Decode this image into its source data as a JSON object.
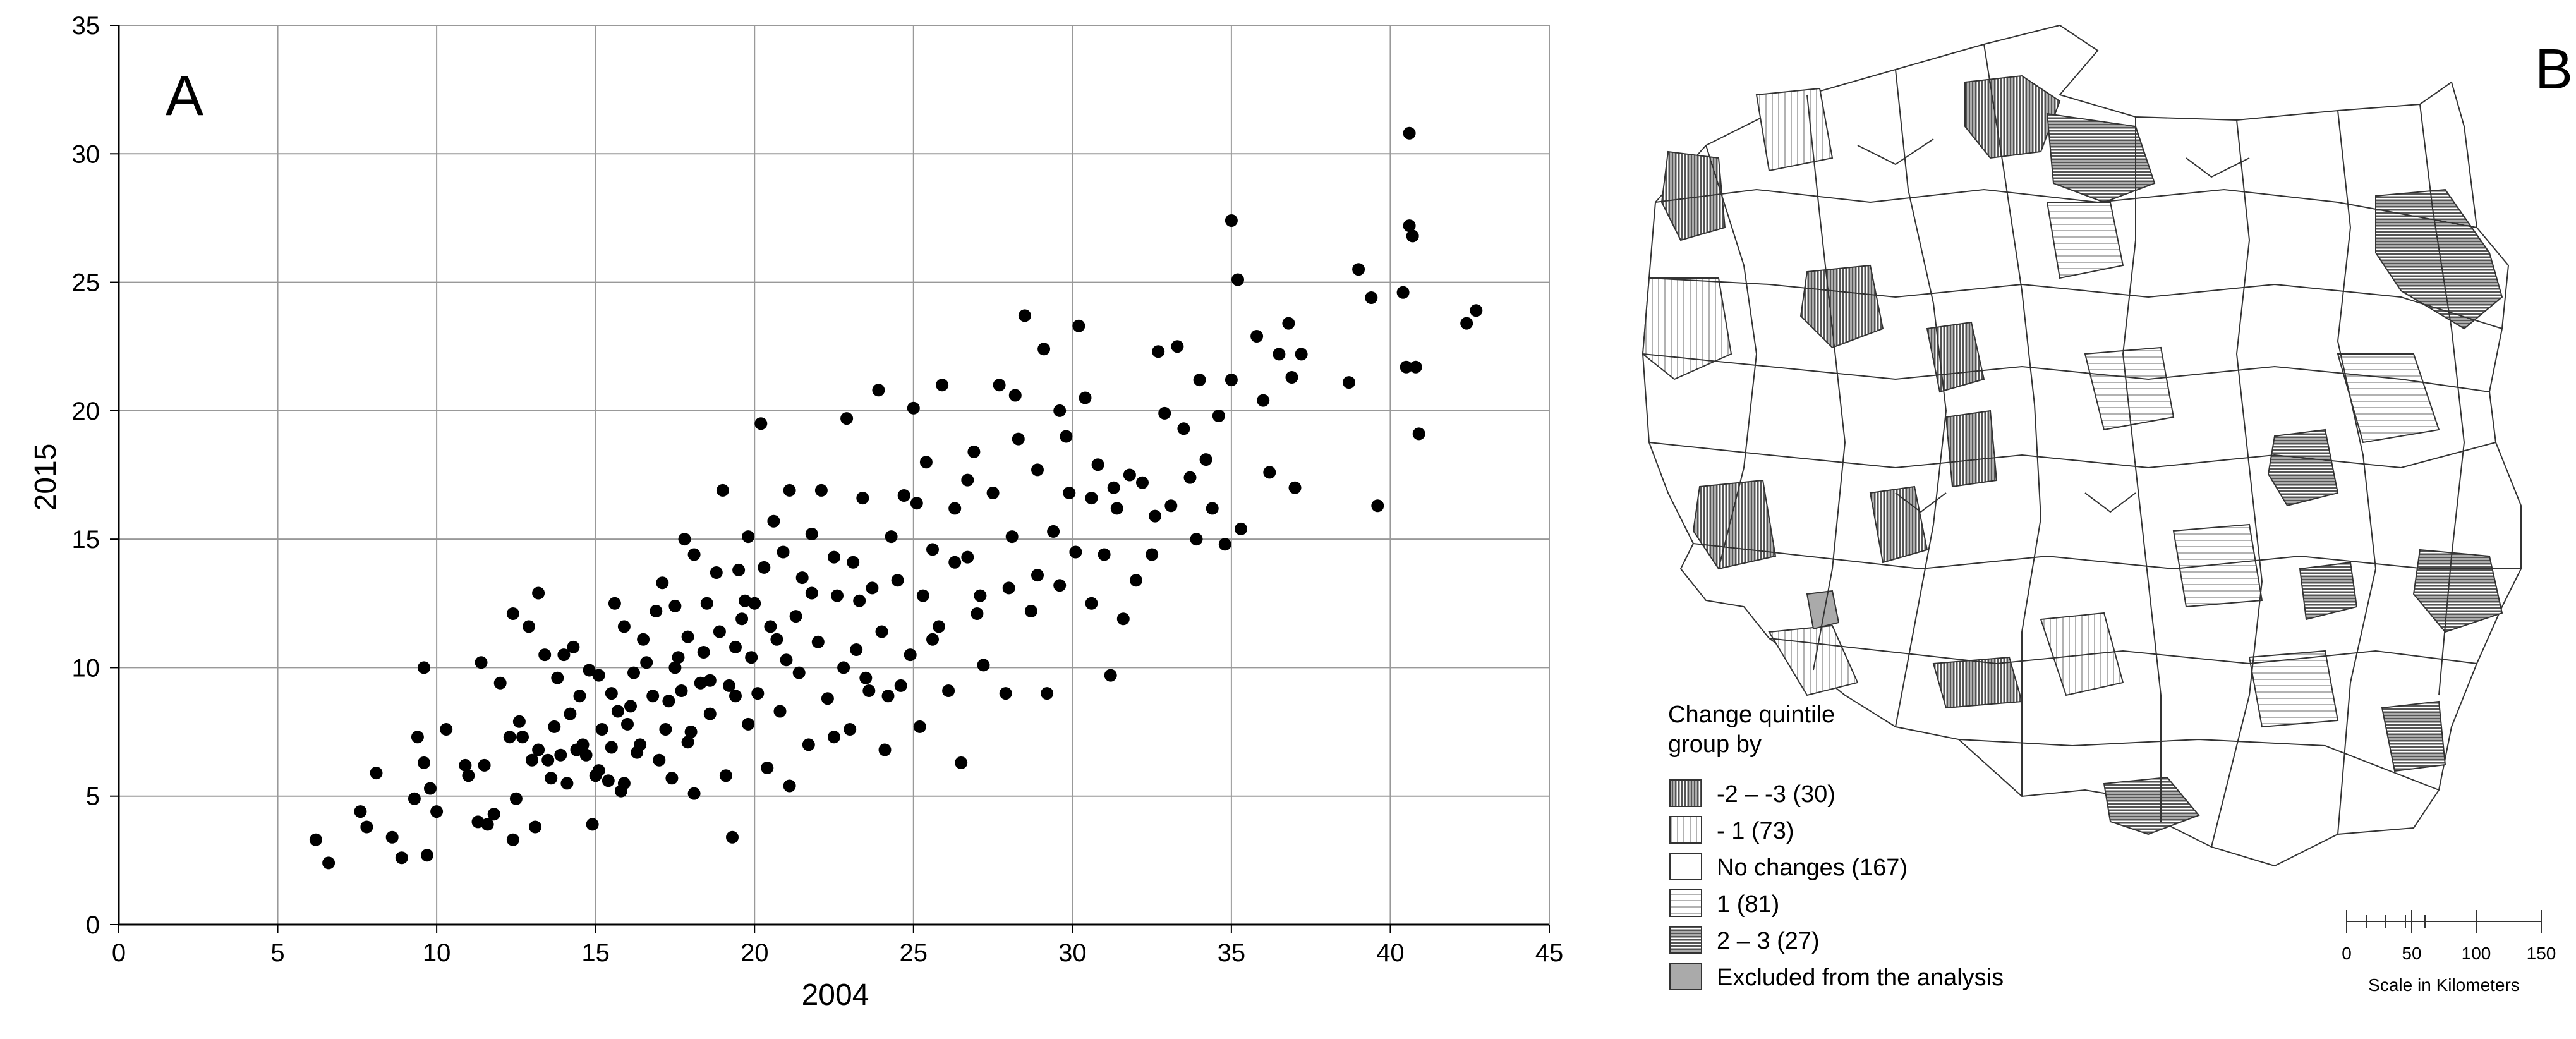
{
  "panel_a_label": "A",
  "panel_b_label": "B",
  "chart_data": {
    "type": "scatter",
    "xlabel": "2004",
    "ylabel": "2015",
    "xlim": [
      0,
      45
    ],
    "ylim": [
      0,
      35
    ],
    "x_ticks": [
      0,
      5,
      10,
      15,
      20,
      25,
      30,
      35,
      40,
      45
    ],
    "y_ticks": [
      0,
      5,
      10,
      15,
      20,
      25,
      30,
      35
    ],
    "grid": true,
    "marker_color": "#000000",
    "points": [
      [
        6.2,
        3.3
      ],
      [
        6.6,
        2.4
      ],
      [
        7.6,
        4.4
      ],
      [
        7.8,
        3.8
      ],
      [
        8.1,
        5.9
      ],
      [
        8.6,
        3.4
      ],
      [
        8.9,
        2.6
      ],
      [
        9.3,
        4.9
      ],
      [
        9.4,
        7.3
      ],
      [
        9.6,
        10.0
      ],
      [
        9.6,
        6.3
      ],
      [
        9.7,
        2.7
      ],
      [
        9.8,
        5.3
      ],
      [
        10.0,
        4.4
      ],
      [
        10.3,
        7.6
      ],
      [
        10.9,
        6.2
      ],
      [
        11.0,
        5.8
      ],
      [
        11.3,
        4.0
      ],
      [
        11.4,
        10.2
      ],
      [
        11.5,
        6.2
      ],
      [
        11.6,
        3.9
      ],
      [
        11.8,
        4.3
      ],
      [
        12.0,
        9.4
      ],
      [
        12.3,
        7.3
      ],
      [
        12.4,
        12.1
      ],
      [
        12.4,
        3.3
      ],
      [
        12.5,
        4.9
      ],
      [
        12.6,
        7.9
      ],
      [
        12.7,
        7.3
      ],
      [
        13.0,
        6.4
      ],
      [
        13.1,
        3.8
      ],
      [
        13.2,
        12.9
      ],
      [
        13.2,
        6.8
      ],
      [
        13.4,
        10.5
      ],
      [
        13.5,
        6.4
      ],
      [
        13.6,
        5.7
      ],
      [
        13.7,
        7.7
      ],
      [
        13.8,
        9.6
      ],
      [
        13.9,
        6.6
      ],
      [
        14.0,
        10.5
      ],
      [
        14.1,
        5.5
      ],
      [
        14.2,
        8.2
      ],
      [
        14.3,
        10.8
      ],
      [
        14.4,
        6.8
      ],
      [
        14.6,
        7.0
      ],
      [
        14.7,
        6.6
      ],
      [
        14.8,
        9.9
      ],
      [
        14.9,
        3.9
      ],
      [
        15.0,
        5.8
      ],
      [
        15.1,
        9.7
      ],
      [
        15.2,
        7.6
      ],
      [
        15.4,
        5.6
      ],
      [
        15.5,
        6.9
      ],
      [
        15.5,
        9.0
      ],
      [
        15.6,
        12.5
      ],
      [
        15.7,
        8.3
      ],
      [
        15.8,
        5.2
      ],
      [
        15.9,
        11.6
      ],
      [
        15.9,
        5.5
      ],
      [
        16.1,
        8.5
      ],
      [
        16.2,
        9.8
      ],
      [
        16.4,
        7.0
      ],
      [
        16.5,
        11.1
      ],
      [
        16.6,
        10.2
      ],
      [
        16.8,
        8.9
      ],
      [
        16.9,
        12.2
      ],
      [
        17.0,
        6.4
      ],
      [
        17.1,
        13.3
      ],
      [
        17.2,
        7.6
      ],
      [
        17.3,
        8.7
      ],
      [
        17.4,
        5.7
      ],
      [
        17.5,
        12.4
      ],
      [
        17.6,
        10.4
      ],
      [
        17.7,
        9.1
      ],
      [
        17.8,
        15.0
      ],
      [
        17.9,
        11.2
      ],
      [
        18.0,
        7.5
      ],
      [
        18.1,
        14.4
      ],
      [
        18.1,
        5.1
      ],
      [
        18.3,
        9.4
      ],
      [
        18.4,
        10.6
      ],
      [
        18.5,
        12.5
      ],
      [
        18.6,
        9.5
      ],
      [
        18.8,
        13.7
      ],
      [
        18.9,
        11.4
      ],
      [
        19.0,
        16.9
      ],
      [
        19.1,
        5.8
      ],
      [
        19.2,
        9.3
      ],
      [
        19.3,
        3.4
      ],
      [
        19.4,
        8.9
      ],
      [
        19.5,
        13.8
      ],
      [
        19.6,
        11.9
      ],
      [
        19.7,
        12.6
      ],
      [
        19.8,
        15.1
      ],
      [
        19.9,
        10.4
      ],
      [
        20.0,
        12.5
      ],
      [
        20.1,
        9.0
      ],
      [
        20.2,
        19.5
      ],
      [
        20.3,
        13.9
      ],
      [
        20.4,
        6.1
      ],
      [
        20.5,
        11.6
      ],
      [
        20.6,
        15.7
      ],
      [
        20.8,
        8.3
      ],
      [
        20.9,
        14.5
      ],
      [
        21.0,
        10.3
      ],
      [
        21.1,
        16.9
      ],
      [
        21.3,
        12.0
      ],
      [
        21.4,
        9.8
      ],
      [
        21.5,
        13.5
      ],
      [
        21.7,
        7.0
      ],
      [
        21.8,
        15.2
      ],
      [
        22.0,
        11.0
      ],
      [
        22.1,
        16.9
      ],
      [
        22.3,
        8.8
      ],
      [
        22.5,
        14.3
      ],
      [
        22.6,
        12.8
      ],
      [
        22.8,
        10.0
      ],
      [
        22.9,
        19.7
      ],
      [
        23.0,
        7.6
      ],
      [
        23.1,
        14.1
      ],
      [
        23.3,
        12.6
      ],
      [
        23.4,
        16.6
      ],
      [
        23.5,
        9.6
      ],
      [
        23.7,
        13.1
      ],
      [
        23.9,
        20.8
      ],
      [
        24.0,
        11.4
      ],
      [
        24.2,
        8.9
      ],
      [
        24.3,
        15.1
      ],
      [
        24.5,
        13.4
      ],
      [
        24.7,
        16.7
      ],
      [
        24.9,
        10.5
      ],
      [
        25.0,
        20.1
      ],
      [
        25.2,
        7.7
      ],
      [
        25.3,
        12.8
      ],
      [
        25.4,
        18.0
      ],
      [
        25.6,
        14.6
      ],
      [
        25.8,
        11.6
      ],
      [
        25.9,
        21.0
      ],
      [
        26.1,
        9.1
      ],
      [
        26.3,
        16.2
      ],
      [
        26.5,
        6.3
      ],
      [
        26.7,
        14.3
      ],
      [
        26.9,
        18.4
      ],
      [
        27.1,
        12.8
      ],
      [
        27.2,
        10.1
      ],
      [
        27.5,
        16.8
      ],
      [
        27.7,
        21.0
      ],
      [
        27.9,
        9.0
      ],
      [
        28.1,
        15.1
      ],
      [
        28.3,
        18.9
      ],
      [
        28.5,
        23.7
      ],
      [
        28.7,
        12.2
      ],
      [
        28.9,
        17.7
      ],
      [
        29.1,
        22.4
      ],
      [
        29.2,
        9.0
      ],
      [
        29.4,
        15.3
      ],
      [
        29.6,
        13.2
      ],
      [
        29.8,
        19.0
      ],
      [
        29.9,
        16.8
      ],
      [
        30.1,
        14.5
      ],
      [
        30.2,
        23.3
      ],
      [
        30.4,
        20.5
      ],
      [
        30.6,
        12.5
      ],
      [
        30.8,
        17.9
      ],
      [
        31.0,
        14.4
      ],
      [
        31.2,
        9.7
      ],
      [
        31.4,
        16.2
      ],
      [
        31.6,
        11.9
      ],
      [
        31.8,
        17.5
      ],
      [
        32.0,
        13.4
      ],
      [
        32.2,
        17.2
      ],
      [
        32.5,
        14.4
      ],
      [
        32.7,
        22.3
      ],
      [
        32.9,
        19.9
      ],
      [
        33.1,
        16.3
      ],
      [
        33.3,
        22.5
      ],
      [
        33.5,
        19.3
      ],
      [
        33.7,
        17.4
      ],
      [
        33.9,
        15.0
      ],
      [
        34.0,
        21.2
      ],
      [
        34.2,
        18.1
      ],
      [
        34.4,
        16.2
      ],
      [
        34.6,
        19.8
      ],
      [
        34.8,
        14.8
      ],
      [
        35.0,
        21.2
      ],
      [
        35.0,
        27.4
      ],
      [
        35.2,
        25.1
      ],
      [
        35.3,
        15.4
      ],
      [
        35.8,
        22.9
      ],
      [
        36.0,
        20.4
      ],
      [
        36.2,
        17.6
      ],
      [
        36.5,
        22.2
      ],
      [
        36.8,
        23.4
      ],
      [
        36.9,
        21.3
      ],
      [
        37.0,
        17.0
      ],
      [
        37.2,
        22.2
      ],
      [
        38.7,
        21.1
      ],
      [
        39.0,
        25.5
      ],
      [
        39.4,
        24.4
      ],
      [
        39.6,
        16.3
      ],
      [
        40.4,
        24.6
      ],
      [
        40.5,
        21.7
      ],
      [
        40.6,
        30.8
      ],
      [
        40.6,
        27.2
      ],
      [
        40.7,
        26.8
      ],
      [
        40.8,
        21.7
      ],
      [
        40.9,
        19.1
      ],
      [
        42.4,
        23.4
      ],
      [
        42.7,
        23.9
      ],
      [
        12.9,
        11.6
      ],
      [
        14.5,
        8.9
      ],
      [
        16.0,
        7.8
      ],
      [
        17.9,
        7.1
      ],
      [
        19.8,
        7.8
      ],
      [
        21.1,
        5.4
      ],
      [
        22.5,
        7.3
      ],
      [
        23.6,
        9.1
      ],
      [
        24.1,
        6.8
      ],
      [
        24.6,
        9.3
      ],
      [
        25.6,
        11.1
      ],
      [
        26.3,
        14.1
      ],
      [
        27.0,
        12.1
      ],
      [
        28.0,
        13.1
      ],
      [
        28.9,
        13.6
      ],
      [
        30.6,
        16.6
      ],
      [
        31.3,
        17.0
      ],
      [
        32.6,
        15.9
      ],
      [
        19.4,
        10.8
      ],
      [
        21.8,
        12.9
      ],
      [
        23.2,
        10.7
      ],
      [
        25.1,
        16.4
      ],
      [
        26.7,
        17.3
      ],
      [
        28.2,
        20.6
      ],
      [
        29.6,
        20.0
      ],
      [
        18.6,
        8.2
      ],
      [
        17.5,
        10.0
      ],
      [
        16.3,
        6.7
      ],
      [
        15.1,
        6.0
      ],
      [
        20.7,
        11.1
      ]
    ]
  },
  "map": {
    "legend": {
      "title_line1": "Change quintile",
      "title_line2": "group by",
      "items": [
        {
          "label": "-2 – -3 (30)",
          "pattern": "vertical-dense"
        },
        {
          "label": "- 1 (73)",
          "pattern": "vertical-sparse"
        },
        {
          "label": "No changes (167)",
          "pattern": "none"
        },
        {
          "label": "1 (81)",
          "pattern": "horizontal-sparse"
        },
        {
          "label": "2 – 3 (27)",
          "pattern": "horizontal-dense"
        },
        {
          "label": "Excluded from the analysis",
          "pattern": "solid-gray"
        }
      ]
    },
    "scale_bar": {
      "ticks": [
        "0",
        "50",
        "100",
        "150"
      ],
      "label": "Scale in Kilometers"
    }
  }
}
